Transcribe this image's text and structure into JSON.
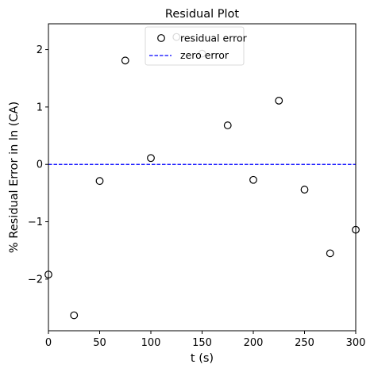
{
  "chart_data": {
    "type": "scatter",
    "title": "Residual Plot",
    "xlabel": "t (s)",
    "ylabel": "% Residual Error in ln (CA)",
    "xlim": [
      0,
      300
    ],
    "ylim": [
      -2.9,
      2.45
    ],
    "xticks": [
      0,
      50,
      100,
      150,
      200,
      250,
      300
    ],
    "yticks": [
      -2,
      -1,
      0,
      1,
      2
    ],
    "grid": false,
    "legend_position": "upper center",
    "series": [
      {
        "name": "residual error",
        "marker": "open-circle",
        "color": "#000000",
        "x": [
          0,
          25,
          50,
          75,
          100,
          125,
          150,
          175,
          200,
          225,
          250,
          275,
          300
        ],
        "y": [
          -1.92,
          -2.63,
          -0.29,
          1.81,
          0.11,
          2.22,
          1.93,
          0.68,
          -0.27,
          1.11,
          -0.44,
          -1.55,
          -1.14
        ]
      },
      {
        "name": "zero error",
        "style": "dashed-line",
        "color": "#0000ff",
        "x": [
          0,
          300
        ],
        "y": [
          0,
          0
        ]
      }
    ]
  }
}
